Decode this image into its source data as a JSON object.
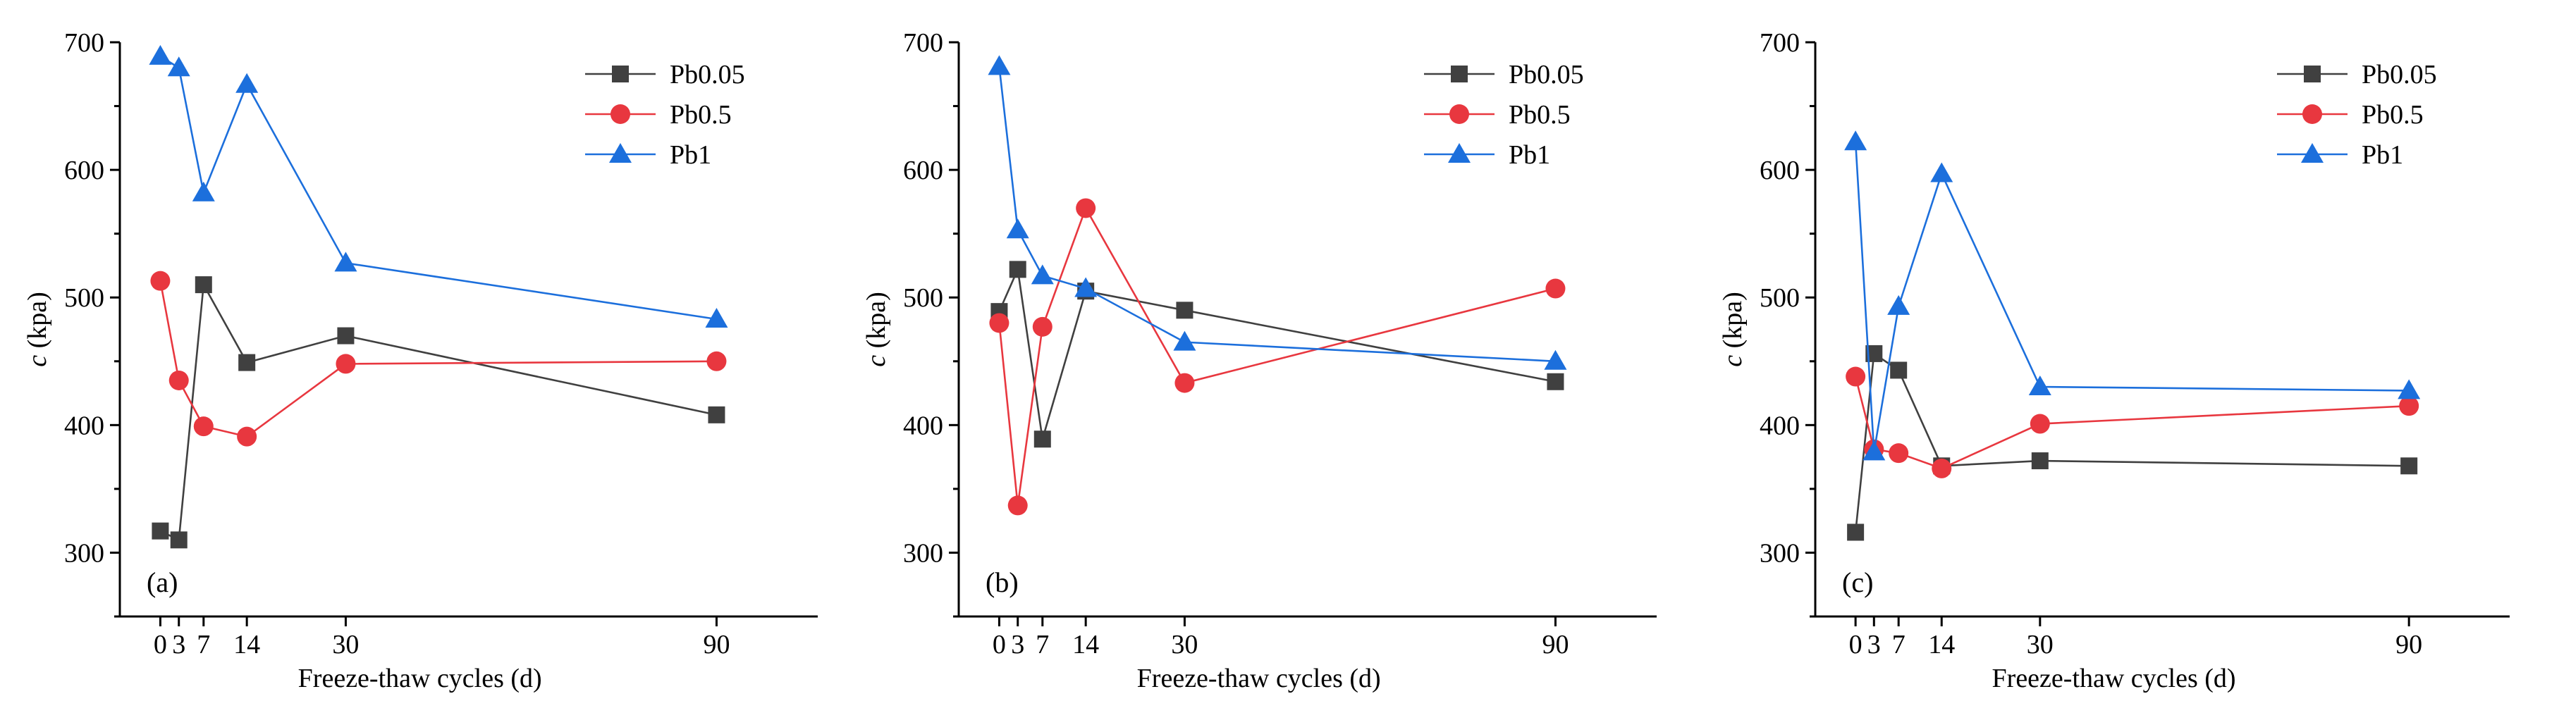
{
  "chart_data": [
    {
      "type": "line",
      "panel_label": "(a)",
      "xlabel": "Freeze-thaw cycles (d)",
      "ylabel_italic": "c",
      "ylabel_rest": " (kpa)",
      "ylim": [
        250,
        700
      ],
      "yticks": [
        300,
        400,
        500,
        600,
        700
      ],
      "xticks": [
        0,
        3,
        7,
        14,
        30,
        90
      ],
      "legend": "top-right",
      "series": [
        {
          "name": "Pb0.05",
          "color": "#404040",
          "marker": "square",
          "x": [
            0,
            3,
            7,
            14,
            30,
            90
          ],
          "values": [
            317,
            310,
            510,
            449,
            470,
            408
          ]
        },
        {
          "name": "Pb0.5",
          "color": "#e8373f",
          "marker": "circle",
          "x": [
            0,
            3,
            7,
            14,
            30,
            90
          ],
          "values": [
            513,
            435,
            399,
            391,
            448,
            450
          ]
        },
        {
          "name": "Pb1",
          "color": "#1c6fdc",
          "marker": "triangle",
          "x": [
            0,
            3,
            7,
            14,
            30,
            90
          ],
          "values": [
            689,
            680,
            582,
            667,
            527,
            483
          ]
        }
      ]
    },
    {
      "type": "line",
      "panel_label": "(b)",
      "xlabel": "Freeze-thaw cycles (d)",
      "ylabel_italic": "c",
      "ylabel_rest": " (kpa)",
      "ylim": [
        250,
        700
      ],
      "yticks": [
        300,
        400,
        500,
        600,
        700
      ],
      "xticks": [
        0,
        3,
        7,
        14,
        30,
        90
      ],
      "legend": "top-right",
      "series": [
        {
          "name": "Pb0.05",
          "color": "#404040",
          "marker": "square",
          "x": [
            0,
            3,
            7,
            14,
            30,
            90
          ],
          "values": [
            489,
            522,
            389,
            505,
            490,
            434
          ]
        },
        {
          "name": "Pb0.5",
          "color": "#e8373f",
          "marker": "circle",
          "x": [
            0,
            3,
            7,
            14,
            30,
            90
          ],
          "values": [
            480,
            337,
            477,
            570,
            433,
            507
          ]
        },
        {
          "name": "Pb1",
          "color": "#1c6fdc",
          "marker": "triangle",
          "x": [
            0,
            3,
            7,
            14,
            30,
            90
          ],
          "values": [
            681,
            553,
            517,
            507,
            465,
            450
          ]
        }
      ]
    },
    {
      "type": "line",
      "panel_label": "(c)",
      "xlabel": "Freeze-thaw cycles (d)",
      "ylabel_italic": "c",
      "ylabel_rest": " (kpa)",
      "ylim": [
        250,
        700
      ],
      "yticks": [
        300,
        400,
        500,
        600,
        700
      ],
      "xticks": [
        0,
        3,
        7,
        14,
        30,
        90
      ],
      "legend": "top-right",
      "series": [
        {
          "name": "Pb0.05",
          "color": "#404040",
          "marker": "square",
          "x": [
            0,
            3,
            7,
            14,
            30,
            90
          ],
          "values": [
            316,
            456,
            443,
            368,
            372,
            368
          ]
        },
        {
          "name": "Pb0.5",
          "color": "#e8373f",
          "marker": "circle",
          "x": [
            0,
            3,
            7,
            14,
            30,
            90
          ],
          "values": [
            438,
            381,
            378,
            366,
            401,
            415
          ]
        },
        {
          "name": "Pb1",
          "color": "#1c6fdc",
          "marker": "triangle",
          "x": [
            0,
            3,
            7,
            14,
            30,
            90
          ],
          "values": [
            622,
            379,
            493,
            597,
            430,
            427
          ]
        }
      ]
    }
  ]
}
